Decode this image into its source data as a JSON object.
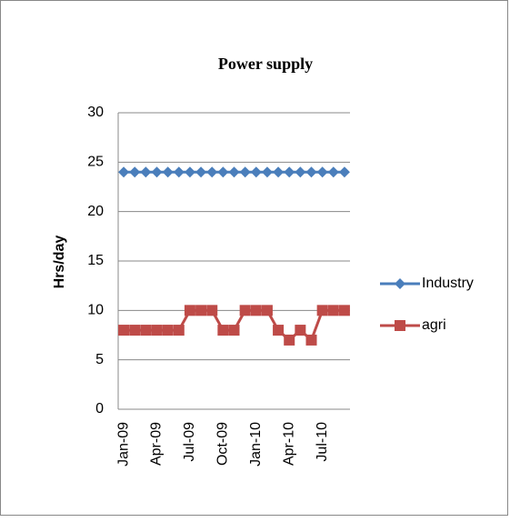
{
  "chart_data": {
    "type": "line",
    "title": "Power supply",
    "y_label": "Hrs/day",
    "categories": [
      "Jan-09",
      null,
      null,
      "Apr-09",
      null,
      null,
      "Jul-09",
      null,
      null,
      "Oct-09",
      null,
      null,
      "Jan-10",
      null,
      null,
      "Apr-10",
      null,
      null,
      "Jul-10",
      null,
      null
    ],
    "series": [
      {
        "name": "Industry",
        "color": "#4a7ebb",
        "marker": "diamond",
        "values": [
          24,
          24,
          24,
          24,
          24,
          24,
          24,
          24,
          24,
          24,
          24,
          24,
          24,
          24,
          24,
          24,
          24,
          24,
          24,
          24,
          24
        ]
      },
      {
        "name": "agri",
        "color": "#be4b48",
        "marker": "square",
        "values": [
          8,
          8,
          8,
          8,
          8,
          8,
          10,
          10,
          10,
          8,
          8,
          10,
          10,
          10,
          8,
          7,
          8,
          7,
          10,
          10,
          10
        ]
      }
    ],
    "ylim": [
      0,
      30
    ],
    "yticks": [
      0,
      5,
      10,
      15,
      20,
      25,
      30
    ],
    "grid": true,
    "legend": "right"
  }
}
